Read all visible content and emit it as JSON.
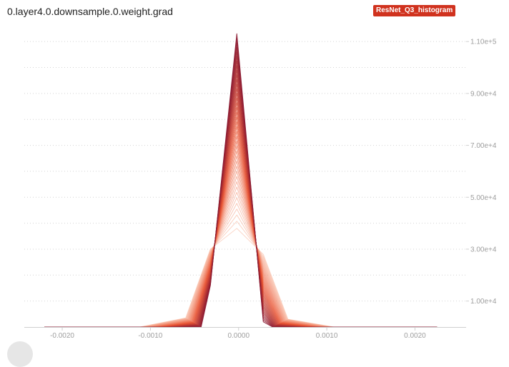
{
  "chart_title": "0.layer4.0.downsample.0.weight.grad",
  "run_badge": {
    "label": "ResNet_Q3_histogram",
    "color": "#d0321e"
  },
  "colors": {
    "dark": "#8b1a32",
    "mid": "#e8502e",
    "light": "#f8b69c",
    "grid": "#d4d4d4",
    "tick_text": "#9e9e9e"
  },
  "chart_data": {
    "type": "line",
    "title": "0.layer4.0.downsample.0.weight.grad",
    "x_ticks": [
      "-0.0020",
      "-0.0010",
      "0.0000",
      "0.0010",
      "0.0020"
    ],
    "y_ticks": [
      "1.00e+4",
      "3.00e+4",
      "5.00e+4",
      "7.00e+4",
      "9.00e+4",
      "1.10e+5"
    ],
    "xlim": [
      -0.00243,
      0.00258
    ],
    "ylim": [
      0,
      115000
    ],
    "x_range": [
      -0.0022,
      0.00225
    ],
    "grid": true,
    "series_count": 40,
    "peak_x": -2e-05,
    "peak_range": [
      38000,
      113000
    ],
    "inner_left_range": [
      30000,
      16000
    ],
    "inner_right_range": [
      28000,
      2000
    ],
    "left_base_x": -0.00032,
    "right_base_x": 0.00028,
    "spread_narrow": 0.0003,
    "spread_wide": 0.0008
  }
}
